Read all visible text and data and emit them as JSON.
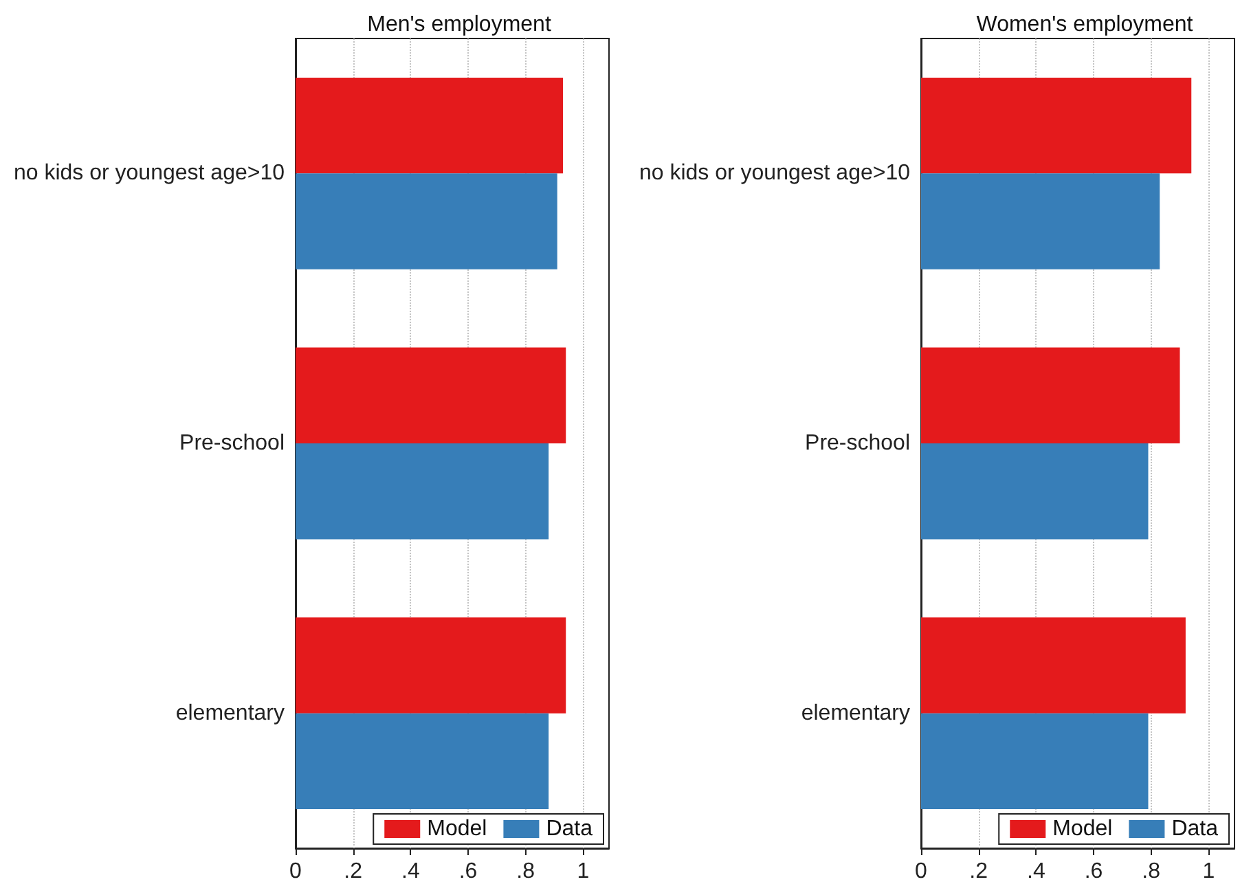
{
  "chart_data": [
    {
      "type": "bar",
      "orientation": "horizontal",
      "title": "Men's employment",
      "categories": [
        "no kids or youngest age>10",
        "Pre-school",
        "elementary"
      ],
      "series": [
        {
          "name": "Model",
          "color": "#e41a1c",
          "values": [
            0.93,
            0.94,
            0.94
          ]
        },
        {
          "name": "Data",
          "color": "#377eb8",
          "values": [
            0.91,
            0.88,
            0.88
          ]
        }
      ],
      "xlim": [
        0,
        1.09
      ],
      "xticks": [
        {
          "value": 0,
          "label": "0"
        },
        {
          "value": 0.2,
          "label": ".2"
        },
        {
          "value": 0.4,
          "label": ".4"
        },
        {
          "value": 0.6,
          "label": ".6"
        },
        {
          "value": 0.8,
          "label": ".8"
        },
        {
          "value": 1,
          "label": "1"
        }
      ],
      "grid": "x",
      "legend": "bottom right"
    },
    {
      "type": "bar",
      "orientation": "horizontal",
      "title": "Women's employment",
      "categories": [
        "no kids or youngest age>10",
        "Pre-school",
        "elementary"
      ],
      "series": [
        {
          "name": "Model",
          "color": "#e41a1c",
          "values": [
            0.94,
            0.9,
            0.92
          ]
        },
        {
          "name": "Data",
          "color": "#377eb8",
          "values": [
            0.83,
            0.79,
            0.79
          ]
        }
      ],
      "xlim": [
        0,
        1.09
      ],
      "xticks": [
        {
          "value": 0,
          "label": "0"
        },
        {
          "value": 0.2,
          "label": ".2"
        },
        {
          "value": 0.4,
          "label": ".4"
        },
        {
          "value": 0.6,
          "label": ".6"
        },
        {
          "value": 0.8,
          "label": ".8"
        },
        {
          "value": 1,
          "label": "1"
        }
      ],
      "grid": "x",
      "legend": "bottom right"
    }
  ]
}
